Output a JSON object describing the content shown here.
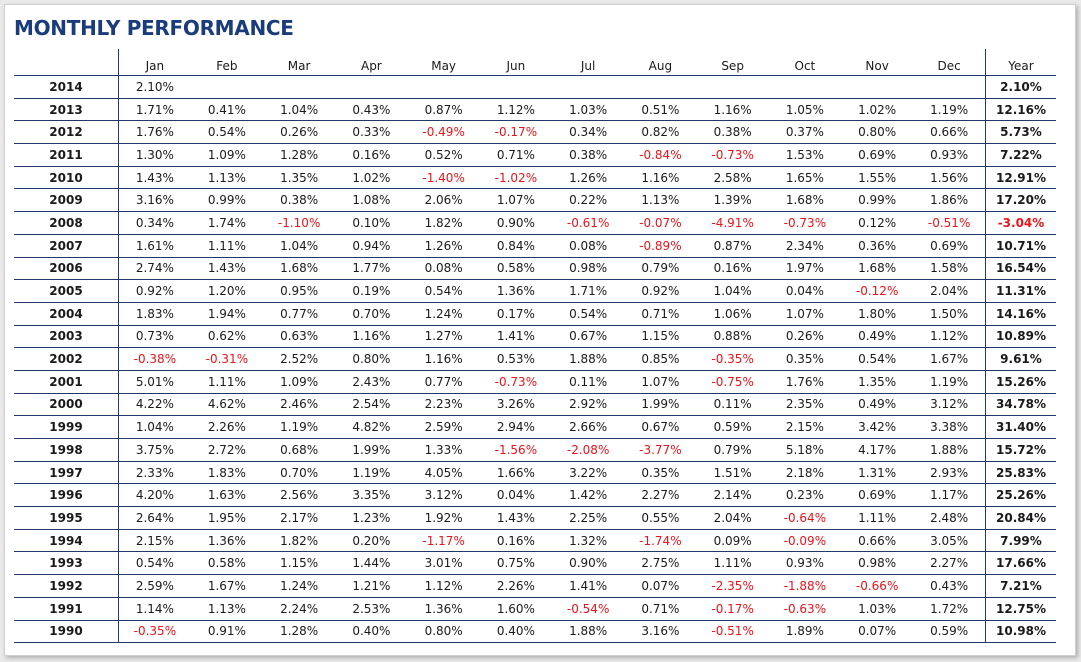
{
  "title": "MONTHLY PERFORMANCE",
  "colors": {
    "title": "#1a3c7a",
    "negative": "#e8141b",
    "rule": "#1f3a66"
  },
  "columns": [
    "Jan",
    "Feb",
    "Mar",
    "Apr",
    "May",
    "Jun",
    "Jul",
    "Aug",
    "Sep",
    "Oct",
    "Nov",
    "Dec"
  ],
  "year_header": "Year",
  "rows": [
    {
      "year": "2014",
      "months": [
        "2.10%",
        "",
        "",
        "",
        "",
        "",
        "",
        "",
        "",
        "",
        "",
        ""
      ],
      "total": "2.10%"
    },
    {
      "year": "2013",
      "months": [
        "1.71%",
        "0.41%",
        "1.04%",
        "0.43%",
        "0.87%",
        "1.12%",
        "1.03%",
        "0.51%",
        "1.16%",
        "1.05%",
        "1.02%",
        "1.19%"
      ],
      "total": "12.16%"
    },
    {
      "year": "2012",
      "months": [
        "1.76%",
        "0.54%",
        "0.26%",
        "0.33%",
        "-0.49%",
        "-0.17%",
        "0.34%",
        "0.82%",
        "0.38%",
        "0.37%",
        "0.80%",
        "0.66%"
      ],
      "total": "5.73%"
    },
    {
      "year": "2011",
      "months": [
        "1.30%",
        "1.09%",
        "1.28%",
        "0.16%",
        "0.52%",
        "0.71%",
        "0.38%",
        "-0.84%",
        "-0.73%",
        "1.53%",
        "0.69%",
        "0.93%"
      ],
      "total": "7.22%"
    },
    {
      "year": "2010",
      "months": [
        "1.43%",
        "1.13%",
        "1.35%",
        "1.02%",
        "-1.40%",
        "-1.02%",
        "1.26%",
        "1.16%",
        "2.58%",
        "1.65%",
        "1.55%",
        "1.56%"
      ],
      "total": "12.91%"
    },
    {
      "year": "2009",
      "months": [
        "3.16%",
        "0.99%",
        "0.38%",
        "1.08%",
        "2.06%",
        "1.07%",
        "0.22%",
        "1.13%",
        "1.39%",
        "1.68%",
        "0.99%",
        "1.86%"
      ],
      "total": "17.20%"
    },
    {
      "year": "2008",
      "months": [
        "0.34%",
        "1.74%",
        "-1.10%",
        "0.10%",
        "1.82%",
        "0.90%",
        "-0.61%",
        "-0.07%",
        "-4.91%",
        "-0.73%",
        "0.12%",
        "-0.51%"
      ],
      "total": "-3.04%"
    },
    {
      "year": "2007",
      "months": [
        "1.61%",
        "1.11%",
        "1.04%",
        "0.94%",
        "1.26%",
        "0.84%",
        "0.08%",
        "-0.89%",
        "0.87%",
        "2.34%",
        "0.36%",
        "0.69%"
      ],
      "total": "10.71%"
    },
    {
      "year": "2006",
      "months": [
        "2.74%",
        "1.43%",
        "1.68%",
        "1.77%",
        "0.08%",
        "0.58%",
        "0.98%",
        "0.79%",
        "0.16%",
        "1.97%",
        "1.68%",
        "1.58%"
      ],
      "total": "16.54%"
    },
    {
      "year": "2005",
      "months": [
        "0.92%",
        "1.20%",
        "0.95%",
        "0.19%",
        "0.54%",
        "1.36%",
        "1.71%",
        "0.92%",
        "1.04%",
        "0.04%",
        "-0.12%",
        "2.04%"
      ],
      "total": "11.31%"
    },
    {
      "year": "2004",
      "months": [
        "1.83%",
        "1.94%",
        "0.77%",
        "0.70%",
        "1.24%",
        "0.17%",
        "0.54%",
        "0.71%",
        "1.06%",
        "1.07%",
        "1.80%",
        "1.50%"
      ],
      "total": "14.16%"
    },
    {
      "year": "2003",
      "months": [
        "0.73%",
        "0.62%",
        "0.63%",
        "1.16%",
        "1.27%",
        "1.41%",
        "0.67%",
        "1.15%",
        "0.88%",
        "0.26%",
        "0.49%",
        "1.12%"
      ],
      "total": "10.89%"
    },
    {
      "year": "2002",
      "months": [
        "-0.38%",
        "-0.31%",
        "2.52%",
        "0.80%",
        "1.16%",
        "0.53%",
        "1.88%",
        "0.85%",
        "-0.35%",
        "0.35%",
        "0.54%",
        "1.67%"
      ],
      "total": "9.61%"
    },
    {
      "year": "2001",
      "months": [
        "5.01%",
        "1.11%",
        "1.09%",
        "2.43%",
        "0.77%",
        "-0.73%",
        "0.11%",
        "1.07%",
        "-0.75%",
        "1.76%",
        "1.35%",
        "1.19%"
      ],
      "total": "15.26%"
    },
    {
      "year": "2000",
      "months": [
        "4.22%",
        "4.62%",
        "2.46%",
        "2.54%",
        "2.23%",
        "3.26%",
        "2.92%",
        "1.99%",
        "0.11%",
        "2.35%",
        "0.49%",
        "3.12%"
      ],
      "total": "34.78%"
    },
    {
      "year": "1999",
      "months": [
        "1.04%",
        "2.26%",
        "1.19%",
        "4.82%",
        "2.59%",
        "2.94%",
        "2.66%",
        "0.67%",
        "0.59%",
        "2.15%",
        "3.42%",
        "3.38%"
      ],
      "total": "31.40%"
    },
    {
      "year": "1998",
      "months": [
        "3.75%",
        "2.72%",
        "0.68%",
        "1.99%",
        "1.33%",
        "-1.56%",
        "-2.08%",
        "-3.77%",
        "0.79%",
        "5.18%",
        "4.17%",
        "1.88%"
      ],
      "total": "15.72%"
    },
    {
      "year": "1997",
      "months": [
        "2.33%",
        "1.83%",
        "0.70%",
        "1.19%",
        "4.05%",
        "1.66%",
        "3.22%",
        "0.35%",
        "1.51%",
        "2.18%",
        "1.31%",
        "2.93%"
      ],
      "total": "25.83%"
    },
    {
      "year": "1996",
      "months": [
        "4.20%",
        "1.63%",
        "2.56%",
        "3.35%",
        "3.12%",
        "0.04%",
        "1.42%",
        "2.27%",
        "2.14%",
        "0.23%",
        "0.69%",
        "1.17%"
      ],
      "total": "25.26%"
    },
    {
      "year": "1995",
      "months": [
        "2.64%",
        "1.95%",
        "2.17%",
        "1.23%",
        "1.92%",
        "1.43%",
        "2.25%",
        "0.55%",
        "2.04%",
        "-0.64%",
        "1.11%",
        "2.48%"
      ],
      "total": "20.84%"
    },
    {
      "year": "1994",
      "months": [
        "2.15%",
        "1.36%",
        "1.82%",
        "0.20%",
        "-1.17%",
        "0.16%",
        "1.32%",
        "-1.74%",
        "0.09%",
        "-0.09%",
        "0.66%",
        "3.05%"
      ],
      "total": "7.99%"
    },
    {
      "year": "1993",
      "months": [
        "0.54%",
        "0.58%",
        "1.15%",
        "1.44%",
        "3.01%",
        "0.75%",
        "0.90%",
        "2.75%",
        "1.11%",
        "0.93%",
        "0.98%",
        "2.27%"
      ],
      "total": "17.66%"
    },
    {
      "year": "1992",
      "months": [
        "2.59%",
        "1.67%",
        "1.24%",
        "1.21%",
        "1.12%",
        "2.26%",
        "1.41%",
        "0.07%",
        "-2.35%",
        "-1.88%",
        "-0.66%",
        "0.43%"
      ],
      "total": "7.21%"
    },
    {
      "year": "1991",
      "months": [
        "1.14%",
        "1.13%",
        "2.24%",
        "2.53%",
        "1.36%",
        "1.60%",
        "-0.54%",
        "0.71%",
        "-0.17%",
        "-0.63%",
        "1.03%",
        "1.72%"
      ],
      "total": "12.75%"
    },
    {
      "year": "1990",
      "months": [
        "-0.35%",
        "0.91%",
        "1.28%",
        "0.40%",
        "0.80%",
        "0.40%",
        "1.88%",
        "3.16%",
        "-0.51%",
        "1.89%",
        "0.07%",
        "0.59%"
      ],
      "total": "10.98%"
    }
  ]
}
